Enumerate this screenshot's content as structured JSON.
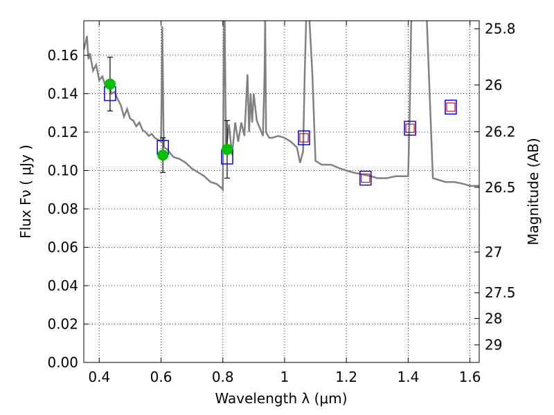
{
  "chart_data": {
    "type": "scatter",
    "xlabel": "Wavelength  λ (μm)",
    "ylabel": "Flux  Fν  ( μJy )",
    "y2label": "Magnitude (AB)",
    "xlim": [
      0.35,
      1.63
    ],
    "ylim": [
      0.0,
      0.178
    ],
    "grid": true,
    "x_ticks": [
      0.4,
      0.6,
      0.8,
      1.0,
      1.2,
      1.4,
      1.6
    ],
    "x_tick_labels": [
      "0.4",
      "0.6",
      "0.8",
      "1",
      "1.2",
      "1.4",
      "1.6"
    ],
    "y_ticks": [
      0.0,
      0.02,
      0.04,
      0.06,
      0.08,
      0.1,
      0.12,
      0.14,
      0.16
    ],
    "y_tick_labels": [
      "0.00",
      "0.02",
      "0.04",
      "0.06",
      "0.08",
      "0.10",
      "0.12",
      "0.14",
      "0.16"
    ],
    "y2_ticks": [
      25.8,
      26,
      26.2,
      26.5,
      27,
      27.5,
      28,
      29
    ],
    "y2_tick_labels": [
      "25.8",
      "26",
      "26.2",
      "26.5",
      "27",
      "27.5",
      "28",
      "29"
    ],
    "colors": {
      "model": "#808080",
      "observed": "#00c000",
      "errorbar": "#000000",
      "model_photometry": "#0000ff",
      "inner_photometry": "#ff0000",
      "grid": "#000000"
    },
    "series": [
      {
        "kind": "model-spectrum",
        "x": [
          0.35,
          0.355,
          0.36,
          0.365,
          0.37,
          0.38,
          0.39,
          0.4,
          0.41,
          0.42,
          0.43,
          0.44,
          0.45,
          0.46,
          0.47,
          0.48,
          0.49,
          0.5,
          0.51,
          0.52,
          0.53,
          0.54,
          0.55,
          0.56,
          0.57,
          0.58,
          0.59,
          0.6,
          0.602,
          0.604,
          0.606,
          0.608,
          0.61,
          0.62,
          0.64,
          0.66,
          0.68,
          0.7,
          0.72,
          0.74,
          0.76,
          0.78,
          0.795,
          0.8,
          0.802,
          0.804,
          0.806,
          0.808,
          0.81,
          0.82,
          0.83,
          0.84,
          0.85,
          0.86,
          0.87,
          0.88,
          0.885,
          0.89,
          0.895,
          0.9,
          0.91,
          0.92,
          0.93,
          0.935,
          0.937,
          0.94,
          0.95,
          0.96,
          0.98,
          1.0,
          1.02,
          1.04,
          1.05,
          1.06,
          1.065,
          1.07,
          1.08,
          1.09,
          1.1,
          1.12,
          1.15,
          1.18,
          1.2,
          1.22,
          1.25,
          1.28,
          1.3,
          1.33,
          1.36,
          1.38,
          1.39,
          1.4,
          1.405,
          1.41,
          1.42,
          1.44,
          1.46,
          1.48,
          1.5,
          1.52,
          1.55,
          1.58,
          1.6,
          1.63
        ],
        "y": [
          0.163,
          0.166,
          0.17,
          0.158,
          0.161,
          0.152,
          0.155,
          0.147,
          0.149,
          0.144,
          0.146,
          0.14,
          0.141,
          0.137,
          0.134,
          0.128,
          0.132,
          0.127,
          0.126,
          0.123,
          0.125,
          0.121,
          0.12,
          0.118,
          0.119,
          0.117,
          0.116,
          0.115,
          0.14,
          0.175,
          0.15,
          0.12,
          0.112,
          0.111,
          0.107,
          0.106,
          0.104,
          0.101,
          0.099,
          0.097,
          0.094,
          0.093,
          0.091,
          0.09,
          0.13,
          0.18,
          0.18,
          0.15,
          0.11,
          0.124,
          0.108,
          0.125,
          0.115,
          0.125,
          0.118,
          0.15,
          0.12,
          0.14,
          0.125,
          0.14,
          0.126,
          0.122,
          0.118,
          0.15,
          0.18,
          0.12,
          0.117,
          0.117,
          0.118,
          0.117,
          0.115,
          0.112,
          0.104,
          0.11,
          0.15,
          0.18,
          0.18,
          0.15,
          0.105,
          0.103,
          0.103,
          0.101,
          0.1,
          0.099,
          0.098,
          0.097,
          0.096,
          0.096,
          0.097,
          0.097,
          0.097,
          0.097,
          0.13,
          0.18,
          0.18,
          0.18,
          0.18,
          0.096,
          0.095,
          0.094,
          0.094,
          0.093,
          0.092,
          0.092
        ]
      },
      {
        "kind": "observed-photometry",
        "x": [
          0.435,
          0.606,
          0.814
        ],
        "y": [
          0.145,
          0.108,
          0.111
        ],
        "yerr": [
          0.014,
          0.009,
          0.015
        ]
      },
      {
        "kind": "model-photometry",
        "x": [
          0.435,
          0.606,
          0.814,
          1.063,
          1.262,
          1.406,
          1.538
        ],
        "y": [
          0.14,
          0.112,
          0.107,
          0.117,
          0.096,
          0.122,
          0.133
        ]
      },
      {
        "kind": "model-photometry-inner",
        "x": [
          1.063,
          1.262,
          1.406,
          1.538
        ],
        "y": [
          0.117,
          0.096,
          0.122,
          0.133
        ]
      }
    ]
  }
}
